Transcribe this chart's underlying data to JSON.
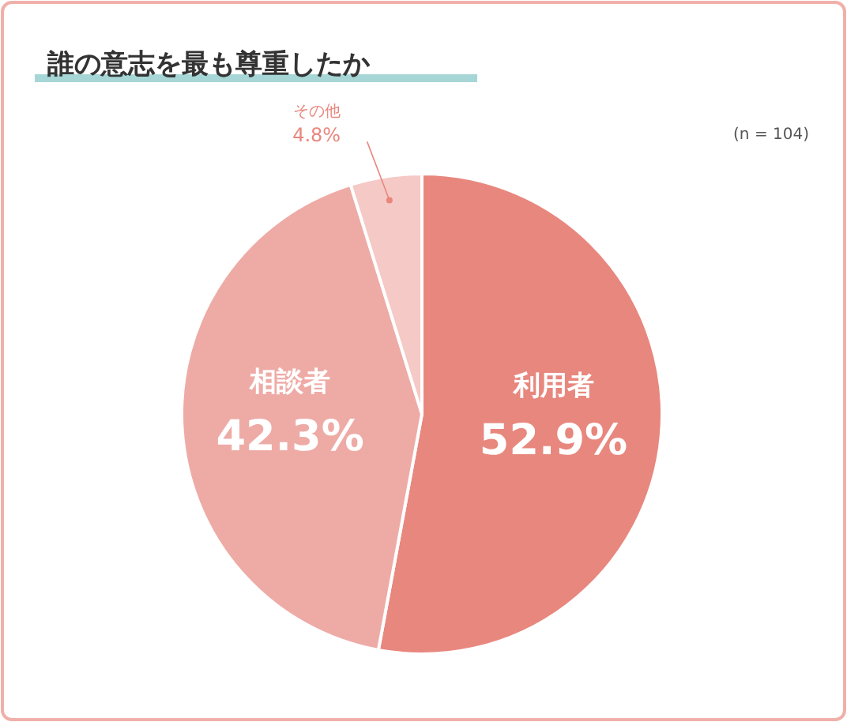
{
  "chart_data": {
    "type": "pie",
    "title": "誰の意志を最も尊重したか",
    "annotations": [
      "(n = 104)"
    ],
    "categories": [
      "利用者",
      "相談者",
      "その他"
    ],
    "values": [
      52.9,
      42.3,
      4.8
    ],
    "colors": [
      "#e8877e",
      "#eeaba6",
      "#f5c9c5"
    ],
    "value_labels": [
      "52.9%",
      "42.3%",
      "4.8%"
    ]
  }
}
